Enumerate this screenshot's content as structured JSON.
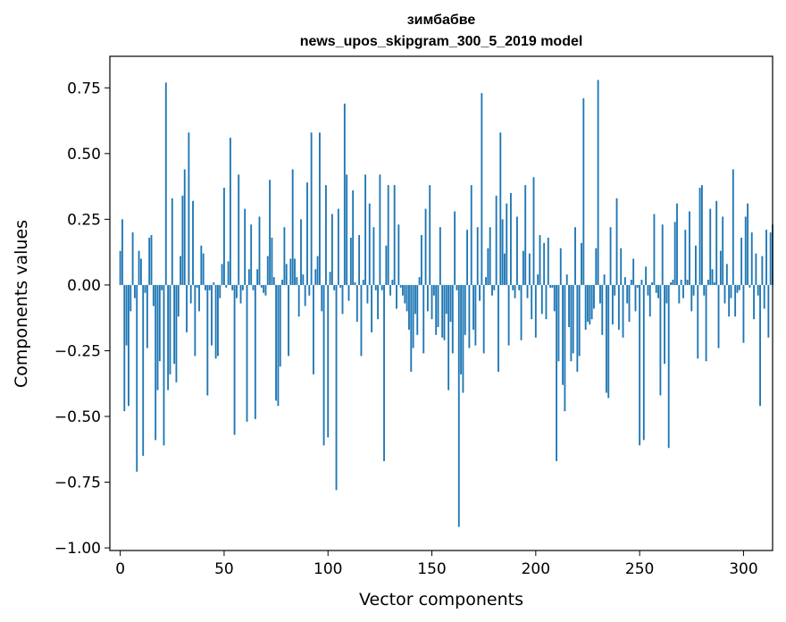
{
  "chart_data": {
    "type": "bar",
    "title": "зимбабве",
    "subtitle": "news_upos_skipgram_300_5_2019 model",
    "xlabel": "Vector components",
    "ylabel": "Components values",
    "xlim": [
      -5,
      314
    ],
    "ylim": [
      -1.01,
      0.87
    ],
    "xticks": [
      0,
      50,
      100,
      150,
      200,
      250,
      300
    ],
    "xtick_labels": [
      "0",
      "50",
      "100",
      "150",
      "200",
      "250",
      "300"
    ],
    "yticks": [
      -1.0,
      -0.75,
      -0.5,
      -0.25,
      0.0,
      0.25,
      0.5,
      0.75
    ],
    "ytick_labels": [
      "−1.00",
      "−0.75",
      "−0.50",
      "−0.25",
      "0.00",
      "0.25",
      "0.50",
      "0.75"
    ],
    "bar_color": "#1f77b4",
    "grid": false,
    "values": [
      0.13,
      0.25,
      -0.48,
      -0.23,
      -0.46,
      -0.1,
      0.2,
      -0.05,
      -0.71,
      0.13,
      0.1,
      -0.65,
      -0.03,
      -0.24,
      0.18,
      0.19,
      -0.08,
      -0.59,
      -0.4,
      -0.29,
      -0.02,
      -0.61,
      0.77,
      -0.4,
      -0.34,
      0.33,
      -0.3,
      -0.37,
      -0.12,
      0.11,
      0.34,
      0.44,
      -0.18,
      0.58,
      -0.07,
      0.32,
      -0.27,
      -0.01,
      -0.1,
      0.15,
      0.12,
      -0.02,
      -0.42,
      -0.02,
      -0.23,
      0.01,
      -0.28,
      -0.27,
      -0.05,
      0.08,
      0.37,
      -0.01,
      0.09,
      0.56,
      -0.02,
      -0.57,
      -0.05,
      0.42,
      -0.07,
      -0.02,
      0.29,
      -0.52,
      0.06,
      0.23,
      -0.02,
      -0.51,
      0.06,
      0.26,
      -0.01,
      -0.03,
      -0.04,
      0.11,
      0.4,
      0.18,
      0.03,
      -0.44,
      -0.46,
      -0.31,
      0.02,
      0.22,
      0.08,
      -0.27,
      0.1,
      0.44,
      0.1,
      0.03,
      -0.12,
      0.25,
      0.04,
      -0.08,
      0.39,
      -0.04,
      0.58,
      -0.34,
      0.06,
      0.11,
      0.58,
      -0.1,
      -0.61,
      0.38,
      -0.58,
      0.05,
      0.27,
      -0.02,
      -0.78,
      0.29,
      -0.01,
      -0.11,
      0.69,
      0.42,
      -0.06,
      0.18,
      0.36,
      0.01,
      -0.14,
      0.19,
      -0.27,
      0.02,
      0.42,
      -0.07,
      0.31,
      -0.18,
      0.22,
      -0.02,
      -0.13,
      0.42,
      -0.02,
      -0.67,
      0.15,
      0.38,
      -0.04,
      0.02,
      0.38,
      -0.09,
      0.23,
      -0.01,
      -0.04,
      -0.07,
      -0.1,
      -0.17,
      -0.33,
      -0.24,
      -0.11,
      -0.19,
      0.03,
      0.19,
      -0.26,
      0.29,
      -0.1,
      0.38,
      -0.13,
      -0.04,
      -0.19,
      -0.16,
      0.22,
      -0.2,
      -0.21,
      -0.11,
      -0.4,
      -0.14,
      -0.26,
      0.28,
      -0.02,
      -0.92,
      -0.34,
      -0.41,
      -0.19,
      0.21,
      -0.24,
      0.38,
      -0.17,
      -0.23,
      0.22,
      -0.06,
      0.73,
      -0.26,
      0.03,
      0.14,
      0.22,
      -0.04,
      -0.02,
      0.34,
      -0.33,
      0.58,
      0.25,
      0.12,
      0.31,
      -0.23,
      0.35,
      -0.02,
      -0.05,
      0.26,
      -0.02,
      -0.21,
      0.13,
      0.38,
      -0.05,
      0.12,
      -0.13,
      0.41,
      -0.2,
      0.04,
      0.19,
      -0.11,
      0.16,
      -0.13,
      0.18,
      -0.01,
      -0.01,
      -0.1,
      -0.67,
      -0.29,
      0.14,
      -0.38,
      -0.48,
      0.04,
      -0.16,
      -0.29,
      -0.26,
      0.22,
      -0.33,
      -0.27,
      0.16,
      0.71,
      -0.17,
      -0.14,
      -0.15,
      -0.13,
      -0.09,
      0.14,
      0.78,
      -0.07,
      -0.19,
      0.04,
      -0.41,
      -0.43,
      0.22,
      -0.15,
      -0.04,
      0.33,
      -0.17,
      0.14,
      -0.2,
      0.03,
      -0.07,
      -0.14,
      0.02,
      0.1,
      -0.1,
      -0.01,
      -0.61,
      0.02,
      -0.59,
      0.07,
      -0.04,
      -0.12,
      0.01,
      0.27,
      -0.03,
      -0.05,
      -0.42,
      0.23,
      -0.3,
      -0.07,
      -0.62,
      0.01,
      0.02,
      0.24,
      0.31,
      -0.07,
      0.02,
      -0.05,
      0.21,
      0.02,
      0.28,
      -0.1,
      -0.04,
      0.15,
      -0.28,
      0.37,
      0.38,
      -0.04,
      -0.29,
      0.02,
      0.29,
      0.06,
      0.01,
      0.32,
      -0.24,
      0.13,
      0.26,
      -0.07,
      0.08,
      -0.12,
      -0.05,
      0.44,
      -0.12,
      -0.03,
      -0.02,
      0.18,
      -0.22,
      0.26,
      0.31,
      -0.01,
      0.2,
      -0.13,
      0.12,
      -0.04,
      -0.46,
      0.11,
      -0.09,
      0.21,
      -0.2,
      0.2,
      0.23
    ]
  }
}
